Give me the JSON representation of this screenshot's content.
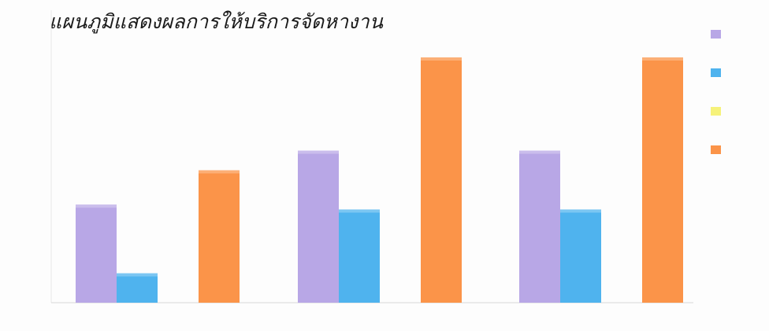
{
  "title": "แผนภูมิแสดงผลการให้บริการจัดหางาน",
  "chart_data": {
    "type": "bar",
    "title": "แผนภูมิแสดงผลการให้บริการจัดหางาน",
    "categories": [
      "",
      "",
      ""
    ],
    "ylim": [
      0,
      50
    ],
    "yticks": [],
    "grid": false,
    "legend_position": "right",
    "series": [
      {
        "color": "#b8a7e6",
        "values": [
          20,
          31,
          31
        ],
        "labels": [
          "",
          "",
          ""
        ]
      },
      {
        "color": "#4fb3ee",
        "values": [
          6,
          19,
          19
        ],
        "labels": [
          "",
          "",
          ""
        ]
      },
      {
        "color": "#f6f27a",
        "values": [
          0,
          0,
          0
        ],
        "labels": [
          "",
          "",
          ""
        ]
      },
      {
        "color": "#fb9449",
        "values": [
          27,
          50,
          50
        ],
        "labels": [
          "",
          "",
          ""
        ]
      }
    ]
  }
}
